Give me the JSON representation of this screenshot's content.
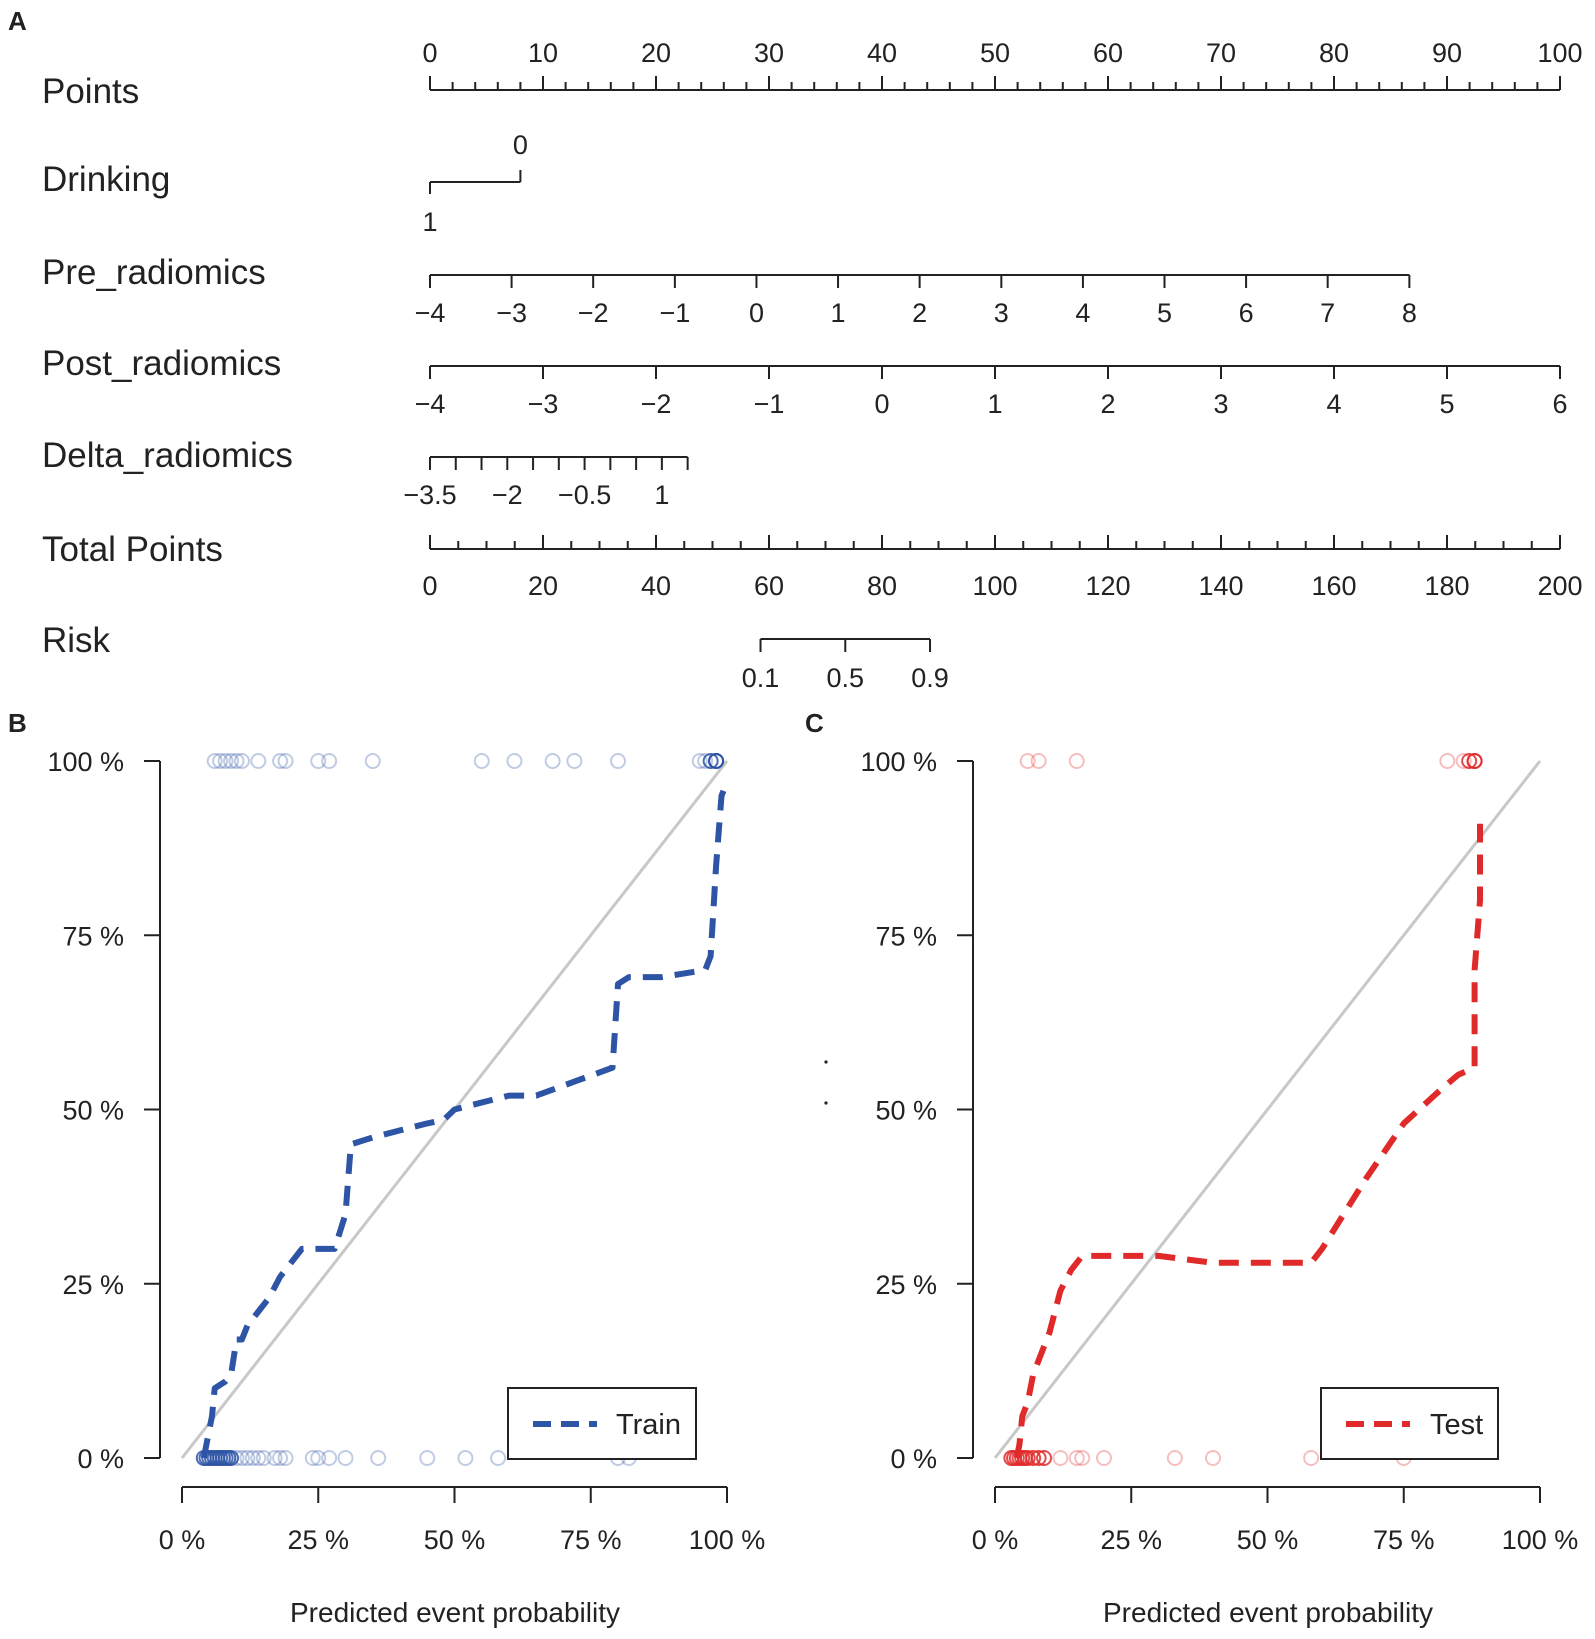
{
  "chart_data": [
    {
      "panel": "A",
      "type": "nomogram",
      "rows": [
        {
          "label": "Points",
          "kind": "axis",
          "domain": [
            0,
            100
          ],
          "major": [
            0,
            10,
            20,
            30,
            40,
            50,
            60,
            70,
            80,
            90,
            100
          ],
          "labels": [
            "0",
            "10",
            "20",
            "30",
            "40",
            "50",
            "60",
            "70",
            "80",
            "90",
            "100"
          ],
          "minor_step": 2,
          "labels_above": true
        },
        {
          "label": "Drinking",
          "kind": "categorical",
          "points_scale": true,
          "levels": [
            {
              "label": "1",
              "points": 0,
              "side": "below"
            },
            {
              "label": "0",
              "points": 8
            }
          ]
        },
        {
          "label": "Pre_radiomics",
          "kind": "axis",
          "values": [
            -4,
            -3,
            -2,
            -1,
            0,
            1,
            2,
            3,
            4,
            5,
            6,
            7,
            8
          ],
          "points": [
            0,
            7.22,
            14.44,
            21.67,
            28.89,
            36.11,
            43.33,
            50.56,
            57.78,
            65,
            72.22,
            79.44,
            86.67
          ],
          "labels": [
            "−4",
            "−3",
            "−2",
            "−1",
            "0",
            "1",
            "2",
            "3",
            "4",
            "5",
            "6",
            "7",
            "8"
          ]
        },
        {
          "label": "Post_radiomics",
          "kind": "axis",
          "values": [
            -4,
            -3,
            -2,
            -1,
            0,
            1,
            2,
            3,
            4,
            5,
            6
          ],
          "points": [
            0,
            10,
            20,
            30,
            40,
            50,
            60,
            70,
            80,
            90,
            100
          ],
          "labels": [
            "−4",
            "−3",
            "−2",
            "−1",
            "0",
            "1",
            "2",
            "3",
            "4",
            "5",
            "6"
          ]
        },
        {
          "label": "Delta_radiomics",
          "kind": "axis",
          "values": [
            -3.5,
            -3,
            -2.5,
            -2,
            -1.5,
            -1,
            -0.5,
            0,
            0.5,
            1,
            1.5
          ],
          "points_range": [
            0,
            22.8
          ],
          "labels": [
            "−3.5",
            "−2",
            "−0.5",
            "1"
          ],
          "label_values": [
            -3.5,
            -2,
            -0.5,
            1
          ]
        },
        {
          "label": "Total Points",
          "kind": "axis",
          "domain": [
            0,
            200
          ],
          "major": [
            0,
            20,
            40,
            60,
            80,
            100,
            120,
            140,
            160,
            180,
            200
          ],
          "labels": [
            "0",
            "20",
            "40",
            "60",
            "80",
            "100",
            "120",
            "140",
            "160",
            "180",
            "200"
          ],
          "minor_step": 5
        },
        {
          "label": "Risk",
          "kind": "axis",
          "values": [
            0.1,
            0.5,
            0.9
          ],
          "total_points": [
            58.5,
            73.5,
            88.5
          ],
          "labels": [
            "0.1",
            "0.5",
            "0.9"
          ]
        }
      ]
    },
    {
      "panel": "B",
      "type": "line",
      "xlabel": "Predicted event probability",
      "xlim": [
        0,
        1
      ],
      "ylim": [
        0,
        1
      ],
      "xticks": [
        "0 %",
        "25 %",
        "50 %",
        "75 %",
        "100 %"
      ],
      "yticks": [
        "0 %",
        "25 %",
        "50 %",
        "75 %",
        "100 %"
      ],
      "legend": "Train",
      "legend_position": "bottom-right",
      "color": "#2E54A5",
      "reference_line": {
        "x": [
          0,
          1
        ],
        "y": [
          0,
          1
        ],
        "color": "#c8c8c8"
      },
      "series": [
        {
          "name": "Train",
          "x": [
            0.04,
            0.045,
            0.055,
            0.06,
            0.08,
            0.09,
            0.1,
            0.11,
            0.12,
            0.14,
            0.16,
            0.18,
            0.2,
            0.22,
            0.26,
            0.28,
            0.3,
            0.31,
            0.35,
            0.4,
            0.45,
            0.48,
            0.5,
            0.6,
            0.65,
            0.72,
            0.79,
            0.8,
            0.82,
            0.88,
            0.96,
            0.97,
            0.98,
            0.99,
            1.0
          ],
          "y": [
            0.0,
            0.02,
            0.06,
            0.1,
            0.11,
            0.12,
            0.17,
            0.17,
            0.19,
            0.21,
            0.23,
            0.26,
            0.28,
            0.3,
            0.3,
            0.3,
            0.35,
            0.45,
            0.46,
            0.47,
            0.48,
            0.485,
            0.5,
            0.52,
            0.52,
            0.54,
            0.56,
            0.68,
            0.69,
            0.69,
            0.7,
            0.72,
            0.85,
            0.95,
            0.97
          ]
        }
      ],
      "events_top_x": [
        0.06,
        0.07,
        0.08,
        0.09,
        0.1,
        0.11,
        0.14,
        0.18,
        0.19,
        0.25,
        0.27,
        0.35,
        0.55,
        0.61,
        0.68,
        0.72,
        0.8,
        0.95,
        0.96,
        0.97,
        0.98,
        0.98,
        0.98
      ],
      "events_bottom_x": [
        0.04,
        0.045,
        0.05,
        0.055,
        0.06,
        0.065,
        0.07,
        0.075,
        0.08,
        0.085,
        0.09,
        0.1,
        0.11,
        0.12,
        0.13,
        0.14,
        0.15,
        0.17,
        0.18,
        0.19,
        0.24,
        0.25,
        0.27,
        0.3,
        0.36,
        0.45,
        0.52,
        0.58,
        0.8,
        0.82
      ]
    },
    {
      "panel": "C",
      "type": "line",
      "xlabel": "Predicted event probability",
      "xlim": [
        0,
        1
      ],
      "ylim": [
        0,
        1
      ],
      "xticks": [
        "0 %",
        "25 %",
        "50 %",
        "75 %",
        "100 %"
      ],
      "yticks": [
        "0 %",
        "25 %",
        "50 %",
        "75 %",
        "100 %"
      ],
      "legend": "Test",
      "legend_position": "bottom-right",
      "color": "#E02A2A",
      "reference_line": {
        "x": [
          0,
          1
        ],
        "y": [
          0,
          1
        ],
        "color": "#c8c8c8"
      },
      "series": [
        {
          "name": "Test",
          "x": [
            0.04,
            0.045,
            0.05,
            0.06,
            0.07,
            0.08,
            0.1,
            0.12,
            0.14,
            0.16,
            0.3,
            0.4,
            0.58,
            0.6,
            0.68,
            0.75,
            0.82,
            0.85,
            0.88,
            0.88,
            0.89,
            0.89
          ],
          "y": [
            0.0,
            0.02,
            0.06,
            0.08,
            0.12,
            0.14,
            0.18,
            0.24,
            0.27,
            0.29,
            0.29,
            0.28,
            0.28,
            0.3,
            0.4,
            0.48,
            0.53,
            0.55,
            0.56,
            0.7,
            0.8,
            0.91
          ]
        }
      ],
      "events_top_x": [
        0.06,
        0.08,
        0.15,
        0.83,
        0.86,
        0.87,
        0.88,
        0.88
      ],
      "events_bottom_x": [
        0.03,
        0.035,
        0.04,
        0.045,
        0.05,
        0.055,
        0.06,
        0.07,
        0.08,
        0.09,
        0.12,
        0.15,
        0.16,
        0.2,
        0.33,
        0.4,
        0.58,
        0.75
      ]
    }
  ],
  "panel_labels": {
    "a": "A",
    "b": "B",
    "c": "C"
  },
  "nomogram": {
    "points": "Points",
    "drinking": "Drinking",
    "pre": "Pre_radiomics",
    "post": "Post_radiomics",
    "delta": "Delta_radiomics",
    "total": "Total Points",
    "risk": "Risk"
  },
  "calib": {
    "b": {
      "xlabel": "Predicted event probability",
      "legend": "Train"
    },
    "c": {
      "xlabel": "Predicted event probability",
      "legend": "Test"
    }
  }
}
